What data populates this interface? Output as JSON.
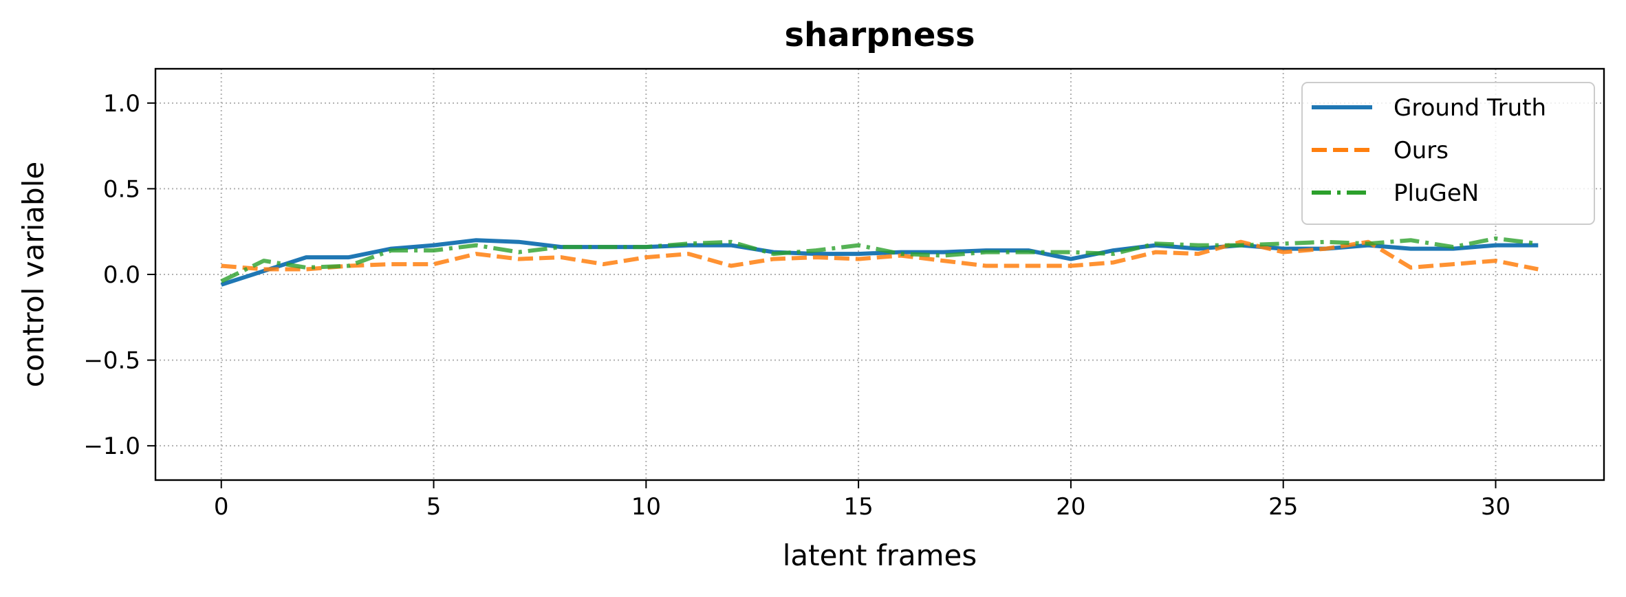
{
  "chart_data": {
    "type": "line",
    "title": "sharpness",
    "xlabel": "latent frames",
    "ylabel": "control variable",
    "xlim": [
      -1.55,
      32.55
    ],
    "ylim": [
      -1.2,
      1.2
    ],
    "xticks": [
      0,
      5,
      10,
      15,
      20,
      25,
      30
    ],
    "xtick_labels": [
      "0",
      "5",
      "10",
      "15",
      "20",
      "25",
      "30"
    ],
    "yticks": [
      -1.0,
      -0.5,
      0.0,
      0.5,
      1.0
    ],
    "ytick_labels": [
      "−1.0",
      "−0.5",
      "0.0",
      "0.5",
      "1.0"
    ],
    "grid": true,
    "legend_position": "top-right",
    "x": [
      0,
      1,
      2,
      3,
      4,
      5,
      6,
      7,
      8,
      9,
      10,
      11,
      12,
      13,
      14,
      15,
      16,
      17,
      18,
      19,
      20,
      21,
      22,
      23,
      24,
      25,
      26,
      27,
      28,
      29,
      30,
      31
    ],
    "series": [
      {
        "name": "Ground Truth",
        "color": "#1f77b4",
        "style": "solid",
        "values": [
          -0.06,
          0.02,
          0.1,
          0.1,
          0.15,
          0.17,
          0.2,
          0.19,
          0.16,
          0.16,
          0.16,
          0.17,
          0.17,
          0.13,
          0.12,
          0.12,
          0.13,
          0.13,
          0.14,
          0.14,
          0.09,
          0.14,
          0.17,
          0.15,
          0.17,
          0.15,
          0.15,
          0.17,
          0.15,
          0.15,
          0.17,
          0.17
        ]
      },
      {
        "name": "Ours",
        "color": "#ff7f0e",
        "style": "dashed",
        "values": [
          0.05,
          0.03,
          0.03,
          0.05,
          0.06,
          0.06,
          0.12,
          0.09,
          0.1,
          0.06,
          0.1,
          0.12,
          0.05,
          0.09,
          0.1,
          0.09,
          0.11,
          0.08,
          0.05,
          0.05,
          0.05,
          0.07,
          0.13,
          0.12,
          0.19,
          0.13,
          0.15,
          0.19,
          0.04,
          0.06,
          0.08,
          0.03
        ]
      },
      {
        "name": "PluGeN",
        "color": "#2ca02c",
        "style": "dashdot",
        "values": [
          -0.04,
          0.08,
          0.04,
          0.05,
          0.14,
          0.14,
          0.17,
          0.13,
          0.16,
          0.16,
          0.16,
          0.18,
          0.19,
          0.12,
          0.14,
          0.17,
          0.12,
          0.11,
          0.13,
          0.13,
          0.13,
          0.12,
          0.18,
          0.17,
          0.17,
          0.18,
          0.19,
          0.18,
          0.2,
          0.16,
          0.21,
          0.18
        ]
      }
    ]
  }
}
